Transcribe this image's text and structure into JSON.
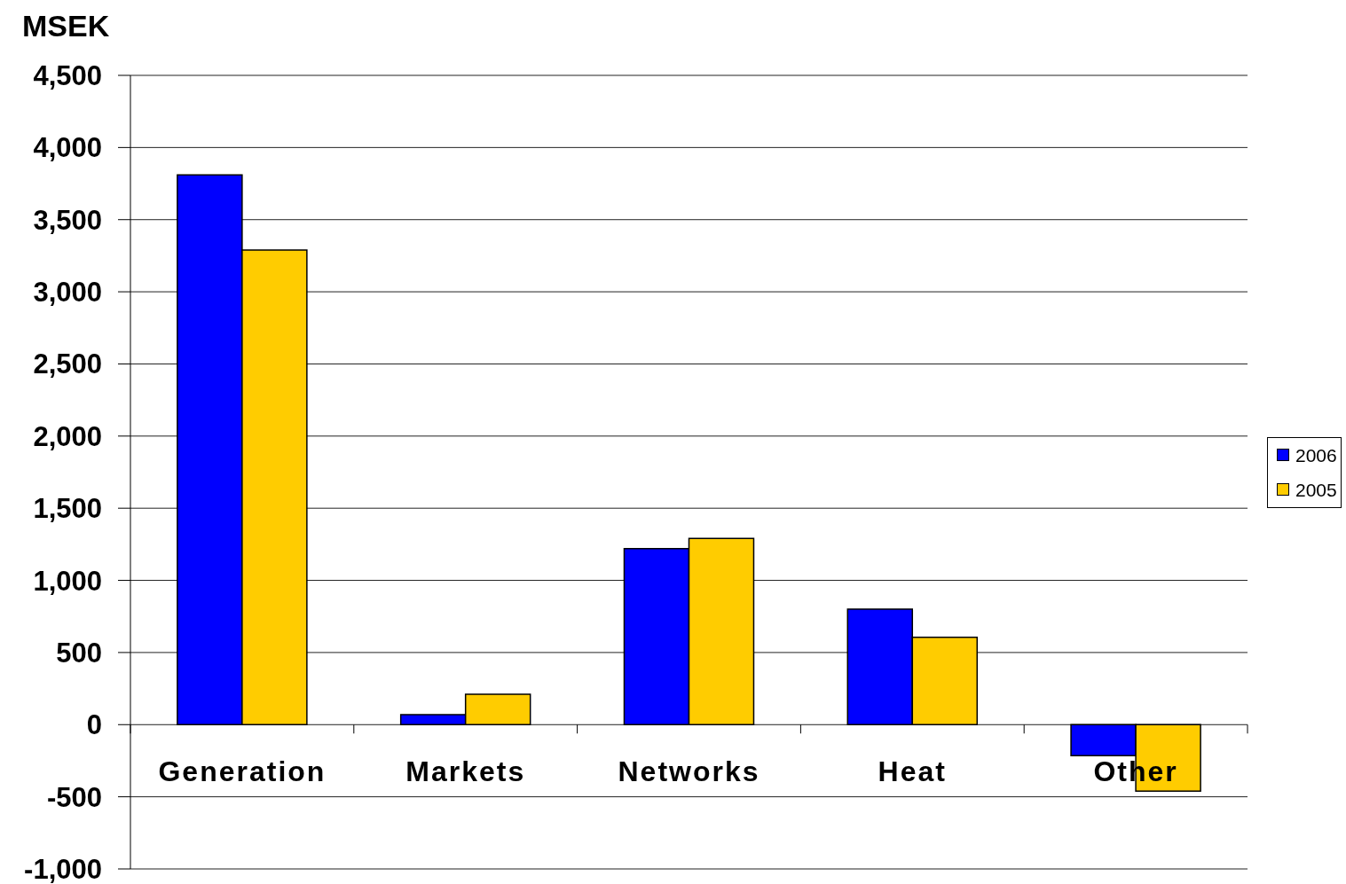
{
  "chart_data": {
    "type": "bar",
    "ylabel": "MSEK",
    "categories": [
      "Generation",
      "Markets",
      "Networks",
      "Heat",
      "Other"
    ],
    "series": [
      {
        "name": "2006",
        "color": "#0000ff",
        "values": [
          3810,
          70,
          1220,
          800,
          -215
        ]
      },
      {
        "name": "2005",
        "color": "#ffcc00",
        "values": [
          3290,
          210,
          1290,
          605,
          -460
        ]
      }
    ],
    "ylim": [
      -1000,
      4500
    ],
    "yticks": [
      {
        "value": -1000,
        "label": "-1,000"
      },
      {
        "value": -500,
        "label": "-500"
      },
      0,
      500,
      {
        "value": 1000,
        "label": "1,000"
      },
      {
        "value": 1500,
        "label": "1,500"
      },
      {
        "value": 2000,
        "label": "2,000"
      },
      {
        "value": 2500,
        "label": "2,500"
      },
      {
        "value": 3000,
        "label": "3,000"
      },
      {
        "value": 3500,
        "label": "3,500"
      },
      {
        "value": 4000,
        "label": "4,000"
      },
      {
        "value": 4500,
        "label": "4,500"
      }
    ],
    "grid": "y",
    "legend": "right"
  }
}
